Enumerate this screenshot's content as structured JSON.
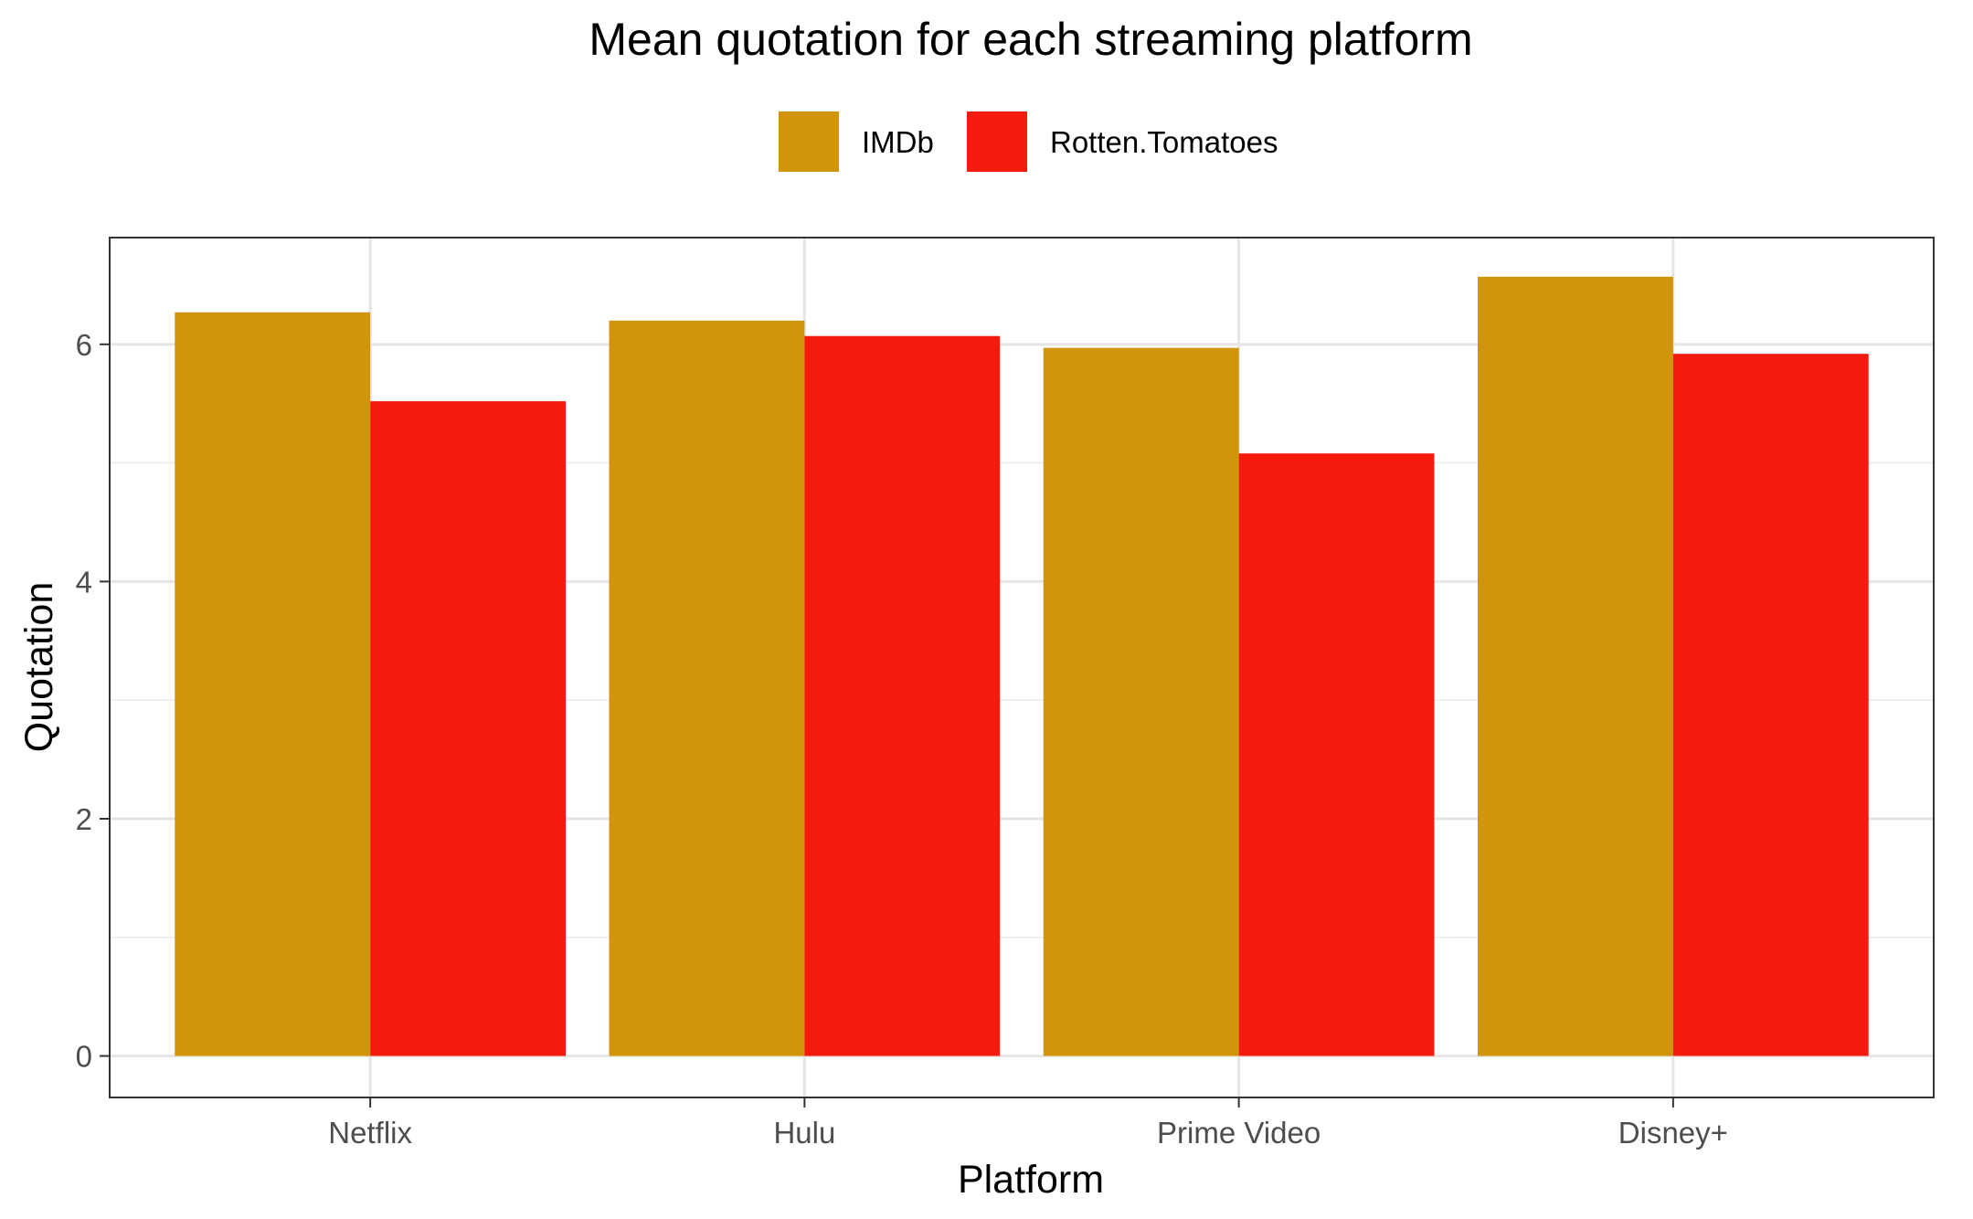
{
  "chart_data": {
    "type": "bar",
    "title": "Mean quotation for each streaming platform",
    "xlabel": "Platform",
    "ylabel": "Quotation",
    "categories": [
      "Netflix",
      "Hulu",
      "Prime Video",
      "Disney+"
    ],
    "series": [
      {
        "name": "IMDb",
        "color": "#D1950C",
        "values": [
          6.27,
          6.2,
          5.97,
          6.57
        ]
      },
      {
        "name": "Rotten.Tomatoes",
        "color": "#F51A0E",
        "values": [
          5.52,
          6.07,
          5.08,
          5.92
        ]
      }
    ],
    "ylim": [
      -0.35,
      6.9
    ],
    "yticks": [
      0,
      2,
      4,
      6
    ],
    "ytick_labels": [
      "0",
      "2",
      "4",
      "6"
    ],
    "grid": true,
    "legend_position": "top"
  }
}
